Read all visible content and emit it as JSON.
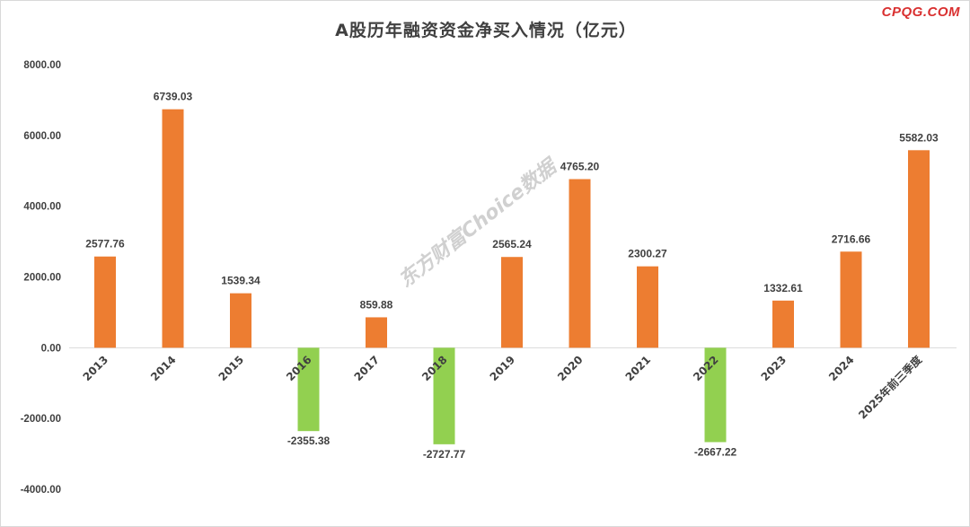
{
  "header": {
    "title": "A股历年融资资金净买入情况（亿元）",
    "brand": "CPQG.COM"
  },
  "watermark": "东方财富Choice数据",
  "colors": {
    "positive": "#ed7d31",
    "negative": "#92d050",
    "axis_text": "#404040",
    "zero_line": "#d9d9d9"
  },
  "chart_data": {
    "type": "bar",
    "title": "A股历年融资资金净买入情况（亿元）",
    "categories": [
      "2013",
      "2014",
      "2015",
      "2016",
      "2017",
      "2018",
      "2019",
      "2020",
      "2021",
      "2022",
      "2023",
      "2024",
      "2025年前三季度"
    ],
    "values": [
      2577.76,
      6739.03,
      1539.34,
      -2355.38,
      859.88,
      -2727.77,
      2565.24,
      4765.2,
      2300.27,
      -2667.22,
      1332.61,
      2716.66,
      5582.03
    ],
    "value_labels": [
      "2577.76",
      "6739.03",
      "1539.34",
      "-2355.38",
      "859.88",
      "-2727.77",
      "2565.24",
      "4765.20",
      "2300.27",
      "-2667.22",
      "1332.61",
      "2716.66",
      "5582.03"
    ],
    "y_ticks": [
      8000,
      6000,
      4000,
      2000,
      0,
      -2000,
      -4000
    ],
    "y_tick_labels": [
      "8000.00",
      "6000.00",
      "4000.00",
      "2000.00",
      "0.00",
      "-2000.00",
      "-4000.00"
    ],
    "ylim": [
      -4000,
      8000
    ],
    "grid": false,
    "legend": "none",
    "xlabel": "",
    "ylabel": ""
  }
}
